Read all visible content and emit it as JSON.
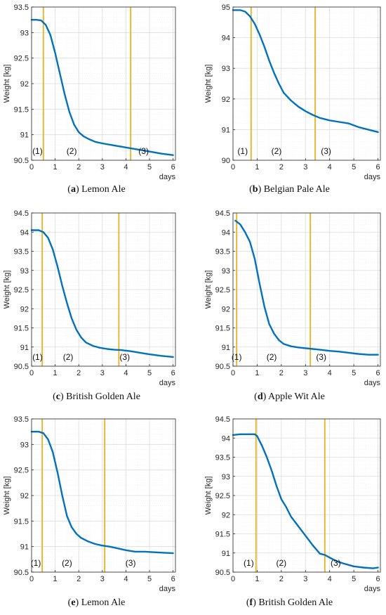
{
  "chart_data": [
    {
      "type": "line",
      "panel_letter": "a",
      "caption": "Lemon Ale",
      "ylabel": "Weight [kg]",
      "xlabel": "days",
      "xlim": [
        0,
        6.1
      ],
      "ylim": [
        90.5,
        93.5
      ],
      "xticks": [
        0,
        1,
        2,
        3,
        4,
        5,
        6
      ],
      "yticks": [
        90.5,
        91,
        91.5,
        92,
        92.5,
        93,
        93.5
      ],
      "grid": true,
      "phase_lines": [
        0.5,
        4.2
      ],
      "phase_labels": [
        {
          "text": "(1)",
          "x": 0.25,
          "y": 90.68
        },
        {
          "text": "(2)",
          "x": 1.7,
          "y": 90.68
        },
        {
          "text": "(3)",
          "x": 4.75,
          "y": 90.68
        }
      ],
      "series": [
        {
          "x": [
            0,
            0.2,
            0.4,
            0.6,
            0.8,
            1.0,
            1.2,
            1.4,
            1.6,
            1.8,
            2.0,
            2.2,
            2.4,
            2.7,
            3.0,
            3.5,
            4.0,
            4.5,
            5.0,
            5.5,
            6.0
          ],
          "y": [
            93.25,
            93.25,
            93.24,
            93.15,
            92.95,
            92.6,
            92.2,
            91.8,
            91.45,
            91.2,
            91.05,
            90.97,
            90.92,
            90.86,
            90.83,
            90.79,
            90.75,
            90.71,
            90.67,
            90.63,
            90.6
          ]
        }
      ]
    },
    {
      "type": "line",
      "panel_letter": "b",
      "caption": "Belgian Pale Ale",
      "ylabel": "Weight [kg]",
      "xlabel": "days",
      "xlim": [
        0,
        6.1
      ],
      "ylim": [
        90,
        95
      ],
      "xticks": [
        0,
        1,
        2,
        3,
        4,
        5,
        6
      ],
      "yticks": [
        90,
        91,
        92,
        93,
        94,
        95
      ],
      "grid": true,
      "phase_lines": [
        0.75,
        3.4
      ],
      "phase_labels": [
        {
          "text": "(1)",
          "x": 0.4,
          "y": 90.3
        },
        {
          "text": "(2)",
          "x": 1.8,
          "y": 90.3
        },
        {
          "text": "(3)",
          "x": 3.85,
          "y": 90.3
        }
      ],
      "series": [
        {
          "x": [
            0,
            0.3,
            0.5,
            0.7,
            0.9,
            1.1,
            1.3,
            1.5,
            1.7,
            1.9,
            2.1,
            2.4,
            2.7,
            3.0,
            3.3,
            3.6,
            4.0,
            4.4,
            4.8,
            5.2,
            5.6,
            6.0
          ],
          "y": [
            94.9,
            94.9,
            94.85,
            94.7,
            94.45,
            94.1,
            93.7,
            93.25,
            92.85,
            92.5,
            92.2,
            91.95,
            91.75,
            91.6,
            91.48,
            91.38,
            91.3,
            91.25,
            91.2,
            91.08,
            91.0,
            90.92
          ]
        }
      ]
    },
    {
      "type": "line",
      "panel_letter": "c",
      "caption": "British Golden Ale",
      "ylabel": "Weight [kg]",
      "xlabel": "days",
      "xlim": [
        0,
        6.1
      ],
      "ylim": [
        90.5,
        94.5
      ],
      "xticks": [
        0,
        1,
        2,
        3,
        4,
        5,
        6
      ],
      "yticks": [
        90.5,
        91,
        91.5,
        92,
        92.5,
        93,
        93.5,
        94,
        94.5
      ],
      "grid": true,
      "phase_lines": [
        0.45,
        3.7
      ],
      "phase_labels": [
        {
          "text": "(1)",
          "x": 0.25,
          "y": 90.74
        },
        {
          "text": "(2)",
          "x": 1.55,
          "y": 90.74
        },
        {
          "text": "(3)",
          "x": 3.95,
          "y": 90.74
        }
      ],
      "series": [
        {
          "x": [
            0,
            0.3,
            0.5,
            0.7,
            0.9,
            1.1,
            1.3,
            1.5,
            1.7,
            1.9,
            2.1,
            2.3,
            2.6,
            2.9,
            3.2,
            3.5,
            3.8,
            4.2,
            4.6,
            5.0,
            5.5,
            6.0
          ],
          "y": [
            94.05,
            94.05,
            94.0,
            93.85,
            93.55,
            93.1,
            92.6,
            92.15,
            91.75,
            91.45,
            91.25,
            91.12,
            91.03,
            90.98,
            90.95,
            90.93,
            90.92,
            90.89,
            90.85,
            90.81,
            90.77,
            90.74
          ]
        }
      ]
    },
    {
      "type": "line",
      "panel_letter": "d",
      "caption": "Apple Wit Ale",
      "ylabel": "Weight [kg]",
      "xlabel": "days",
      "xlim": [
        0,
        6.1
      ],
      "ylim": [
        90.5,
        94.5
      ],
      "xticks": [
        0,
        1,
        2,
        3,
        4,
        5,
        6
      ],
      "yticks": [
        90.5,
        91,
        91.5,
        92,
        92.5,
        93,
        93.5,
        94,
        94.5
      ],
      "grid": true,
      "phase_lines": [
        0.15,
        3.2
      ],
      "phase_labels": [
        {
          "text": "(1)",
          "x": 0.15,
          "y": 90.74
        },
        {
          "text": "(2)",
          "x": 1.6,
          "y": 90.74
        },
        {
          "text": "(3)",
          "x": 3.65,
          "y": 90.74
        }
      ],
      "series": [
        {
          "x": [
            0.1,
            0.3,
            0.5,
            0.7,
            0.9,
            1.1,
            1.3,
            1.5,
            1.7,
            1.9,
            2.1,
            2.4,
            2.7,
            3.0,
            3.3,
            3.6,
            4.0,
            4.4,
            4.8,
            5.2,
            5.6,
            6.0
          ],
          "y": [
            94.3,
            94.2,
            94.0,
            93.75,
            93.3,
            92.65,
            92.05,
            91.6,
            91.35,
            91.18,
            91.08,
            91.02,
            90.99,
            90.97,
            90.95,
            90.93,
            90.9,
            90.88,
            90.85,
            90.82,
            90.8,
            90.8
          ]
        }
      ]
    },
    {
      "type": "line",
      "panel_letter": "e",
      "caption": "Lemon Ale",
      "ylabel": "Weight [kg]",
      "xlabel": "days",
      "xlim": [
        0,
        6.1
      ],
      "ylim": [
        90.5,
        93.5
      ],
      "xticks": [
        0,
        1,
        2,
        3,
        4,
        5,
        6
      ],
      "yticks": [
        90.5,
        91,
        91.5,
        92,
        92.5,
        93,
        93.5
      ],
      "grid": true,
      "phase_lines": [
        0.45,
        3.1
      ],
      "phase_labels": [
        {
          "text": "(1)",
          "x": 0.18,
          "y": 90.68
        },
        {
          "text": "(2)",
          "x": 1.5,
          "y": 90.68
        },
        {
          "text": "(3)",
          "x": 4.2,
          "y": 90.68
        }
      ],
      "series": [
        {
          "x": [
            0,
            0.3,
            0.5,
            0.7,
            0.9,
            1.1,
            1.3,
            1.5,
            1.7,
            1.9,
            2.1,
            2.4,
            2.7,
            3.0,
            3.3,
            3.6,
            4.0,
            4.4,
            4.8,
            5.2,
            5.6,
            6.0
          ],
          "y": [
            93.25,
            93.25,
            93.22,
            93.1,
            92.85,
            92.45,
            92.0,
            91.6,
            91.38,
            91.25,
            91.17,
            91.1,
            91.05,
            91.02,
            91.0,
            90.97,
            90.93,
            90.9,
            90.9,
            90.89,
            90.88,
            90.87
          ]
        }
      ]
    },
    {
      "type": "line",
      "panel_letter": "f",
      "caption": "British Golden Ale",
      "ylabel": "Weight [kg]",
      "xlabel": "days",
      "xlim": [
        0,
        6.1
      ],
      "ylim": [
        90.5,
        94.5
      ],
      "xticks": [
        0,
        1,
        2,
        3,
        4,
        5,
        6
      ],
      "yticks": [
        90.5,
        91,
        91.5,
        92,
        92.5,
        93,
        93.5,
        94,
        94.5
      ],
      "grid": true,
      "phase_lines": [
        0.95,
        3.8
      ],
      "phase_labels": [
        {
          "text": "(1)",
          "x": 0.65,
          "y": 90.74
        },
        {
          "text": "(2)",
          "x": 2.0,
          "y": 90.74
        },
        {
          "text": "(3)",
          "x": 4.25,
          "y": 90.74
        }
      ],
      "series": [
        {
          "x": [
            0,
            0.3,
            0.6,
            0.9,
            1.0,
            1.2,
            1.4,
            1.6,
            1.8,
            2.0,
            2.2,
            2.4,
            2.7,
            3.0,
            3.3,
            3.6,
            3.8,
            4.0,
            4.3,
            4.6,
            5.0,
            5.4,
            5.8,
            6.0
          ],
          "y": [
            94.08,
            94.1,
            94.1,
            94.1,
            94.05,
            93.8,
            93.5,
            93.15,
            92.75,
            92.4,
            92.2,
            91.95,
            91.7,
            91.45,
            91.2,
            90.98,
            90.95,
            90.88,
            90.78,
            90.72,
            90.65,
            90.62,
            90.6,
            90.62
          ]
        }
      ]
    }
  ],
  "colors": {
    "line": "#0072BD",
    "phase_line": "#EDB120",
    "grid": "#dcdcdc",
    "axis": "#262626"
  }
}
